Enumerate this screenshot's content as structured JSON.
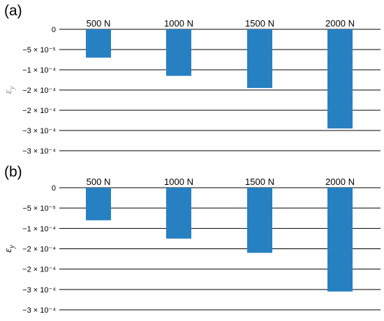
{
  "chart_data": [
    {
      "type": "bar",
      "panel_label": "(a)",
      "ylabel": "ε",
      "ylabel_sub": "y",
      "categories": [
        "500 N",
        "1000 N",
        "1500 N",
        "2000 N"
      ],
      "values": [
        -7e-05,
        -0.000115,
        -0.000145,
        -0.000245
      ],
      "ylim": [
        -0.0003,
        0
      ],
      "yticks": [
        {
          "value": 0,
          "label": "0"
        },
        {
          "value": -5e-05,
          "label": "−5 × 10⁻⁵"
        },
        {
          "value": -0.0001,
          "label": "−1 × 10⁻⁴"
        },
        {
          "value": -0.00015,
          "label": "−2 × 10⁻⁴"
        },
        {
          "value": -0.0002,
          "label": "−2 × 10⁻⁴"
        },
        {
          "value": -0.00025,
          "label": "−3 × 10⁻⁴"
        },
        {
          "value": -0.0003,
          "label": "−3 × 10⁻⁴"
        }
      ],
      "grid": true,
      "bar_color": "#2680c2"
    },
    {
      "type": "bar",
      "panel_label": "(b)",
      "ylabel": "ε",
      "ylabel_sub": "y",
      "categories": [
        "500 N",
        "1000 N",
        "1500 N",
        "2000 N"
      ],
      "values": [
        -8e-05,
        -0.000125,
        -0.00016,
        -0.000255
      ],
      "ylim": [
        -0.0003,
        0
      ],
      "yticks": [
        {
          "value": 0,
          "label": "0"
        },
        {
          "value": -5e-05,
          "label": "−5 × 10⁻⁵"
        },
        {
          "value": -0.0001,
          "label": "−1 × 10⁻⁴"
        },
        {
          "value": -0.00015,
          "label": "−2 × 10⁻⁴"
        },
        {
          "value": -0.0002,
          "label": "−2 × 10⁻⁴"
        },
        {
          "value": -0.00025,
          "label": "−3 × 10⁻⁴"
        },
        {
          "value": -0.0003,
          "label": "−3 × 10⁻⁴"
        }
      ],
      "grid": true,
      "bar_color": "#2680c2"
    }
  ]
}
